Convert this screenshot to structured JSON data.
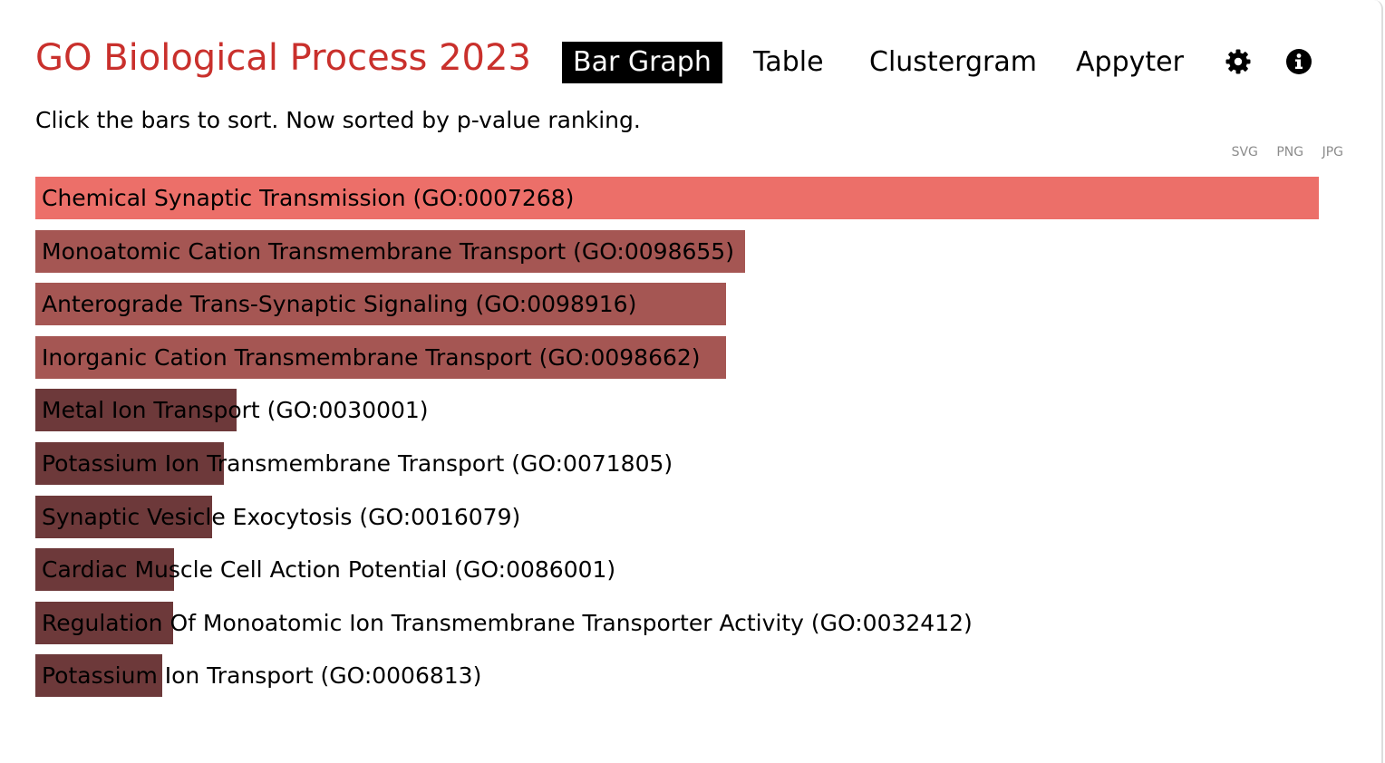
{
  "header": {
    "title": "GO Biological Process 2023",
    "tabs": [
      {
        "label": "Bar Graph",
        "active": true
      },
      {
        "label": "Table",
        "active": false
      },
      {
        "label": "Clustergram",
        "active": false
      },
      {
        "label": "Appyter",
        "active": false
      }
    ],
    "icons": [
      "gear-icon",
      "info-icon"
    ]
  },
  "subtitle": "Click the bars to sort. Now sorted by p-value ranking.",
  "exports": [
    "SVG",
    "PNG",
    "JPG"
  ],
  "colors": {
    "title": "#c9302c",
    "bar_top": "#ec6f69",
    "bar_mid": "#a55653",
    "bar_low": "#6d393a"
  },
  "chart_data": {
    "type": "bar",
    "orientation": "horizontal",
    "categories": [
      "Chemical Synaptic Transmission (GO:0007268)",
      "Monoatomic Cation Transmembrane Transport (GO:0098655)",
      "Anterograde Trans-Synaptic Signaling (GO:0098916)",
      "Inorganic Cation Transmembrane Transport (GO:0098662)",
      "Metal Ion Transport (GO:0030001)",
      "Potassium Ion Transmembrane Transport (GO:0071805)",
      "Synaptic Vesicle Exocytosis (GO:0016079)",
      "Cardiac Muscle Cell Action Potential (GO:0086001)",
      "Regulation Of Monoatomic Ion Transmembrane Transporter Activity (GO:0032412)",
      "Potassium Ion Transport (GO:0006813)"
    ],
    "values": [
      1.0,
      0.553,
      0.538,
      0.538,
      0.157,
      0.147,
      0.138,
      0.108,
      0.107,
      0.099
    ],
    "colors": [
      "#ec6f69",
      "#a55653",
      "#a55653",
      "#a55653",
      "#6d393a",
      "#6d393a",
      "#6d393a",
      "#6d393a",
      "#6d393a",
      "#6d393a"
    ],
    "sort": "p-value ranking"
  }
}
